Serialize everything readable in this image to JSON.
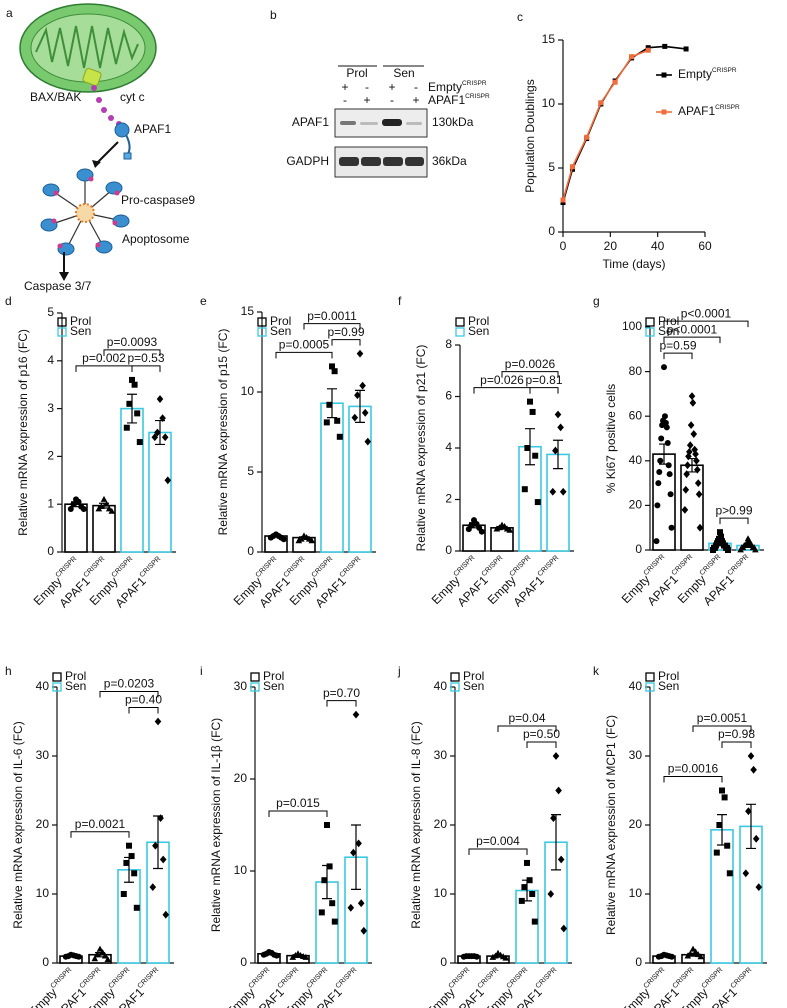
{
  "diagram": {
    "panel": "a",
    "labels": [
      "BAX/BAK",
      "cyt c",
      "APAF1",
      "Pro-caspase9",
      "Apoptosome",
      "Caspase 3/7"
    ]
  },
  "blot": {
    "panel": "b",
    "groups": [
      "Prol",
      "Sen"
    ],
    "rows": [
      {
        "label": "Empty",
        "superscript": "CRISPR",
        "signs": [
          "+",
          "-",
          "+",
          "-"
        ]
      },
      {
        "label": "APAF1",
        "superscript": "CRISPR",
        "signs": [
          "-",
          "+",
          "-",
          "+"
        ]
      }
    ],
    "bands": [
      {
        "label": "APAF1",
        "size": "130kDa"
      },
      {
        "label": "GADPH",
        "size": "36kDa"
      }
    ]
  },
  "chart_data": [
    {
      "type": "line",
      "panel": "c",
      "xlabel": "Time (days)",
      "ylabel": "Population Doublings",
      "superscript": "CRISPR",
      "series": [
        {
          "name": "Empty",
          "color": "#000000",
          "x": [
            0,
            4,
            10,
            16,
            22,
            29,
            36,
            43,
            52
          ],
          "values": [
            2.3,
            4.9,
            7.3,
            10.0,
            11.8,
            13.6,
            14.4,
            14.5,
            14.3
          ]
        },
        {
          "name": "APAF1",
          "color": "#f26b3a",
          "x": [
            0,
            4,
            10,
            16,
            22,
            29,
            36
          ],
          "values": [
            2.5,
            5.1,
            7.4,
            10.1,
            11.7,
            13.7,
            14.2
          ]
        }
      ],
      "xlim": [
        0,
        60
      ],
      "xticks": [
        0,
        20,
        40,
        60
      ],
      "ylim": [
        0,
        15
      ],
      "yticks": [
        0,
        5,
        10,
        15
      ]
    },
    {
      "type": "bar",
      "panel": "d",
      "ylabel": "Relative mRNA expression of p16 (FC)",
      "superscript": "CRISPR",
      "categories": [
        "Empty",
        "APAF1",
        "Empty",
        "APAF1"
      ],
      "colors": [
        "#000000",
        "#000000",
        "#3cc8e0",
        "#3cc8e0"
      ],
      "markers": [
        "circle",
        "triangle",
        "square",
        "diamond"
      ],
      "legend": [
        {
          "name": "Prol",
          "color": "#000000"
        },
        {
          "name": "Sen",
          "color": "#3cc8e0"
        }
      ],
      "values": [
        1.0,
        0.97,
        3.0,
        2.5
      ],
      "errors": [
        0.05,
        0.05,
        0.3,
        0.25
      ],
      "points": [
        [
          1.1,
          1.05,
          1.0,
          0.95,
          0.9,
          0.9
        ],
        [
          1.1,
          1.0,
          0.95,
          0.9,
          0.9,
          0.85
        ],
        [
          3.6,
          3.5,
          3.1,
          2.9,
          2.6,
          2.3
        ],
        [
          3.2,
          2.8,
          2.5,
          2.4,
          2.4,
          1.5
        ]
      ],
      "annotations": [
        {
          "text": "p=0.002",
          "groups": [
            0,
            2
          ]
        },
        {
          "text": "p=0.53",
          "groups": [
            2,
            3
          ]
        },
        {
          "text": "p=0.0093",
          "groups": [
            1,
            3
          ]
        }
      ],
      "ylim": [
        0,
        5
      ],
      "yticks": [
        0,
        1,
        2,
        3,
        4,
        5
      ]
    },
    {
      "type": "bar",
      "panel": "e",
      "ylabel": "Relative mRNA expression of p15 (FC)",
      "superscript": "CRISPR",
      "categories": [
        "Empty",
        "APAF1",
        "Empty",
        "APAF1"
      ],
      "colors": [
        "#000000",
        "#000000",
        "#3cc8e0",
        "#3cc8e0"
      ],
      "markers": [
        "circle",
        "triangle",
        "square",
        "diamond"
      ],
      "legend": [
        {
          "name": "Prol",
          "color": "#000000"
        },
        {
          "name": "Sen",
          "color": "#3cc8e0"
        }
      ],
      "values": [
        1.0,
        0.9,
        9.3,
        9.1
      ],
      "errors": [
        0.05,
        0.05,
        0.9,
        1.0
      ],
      "points": [
        [
          1.1,
          1.0,
          1.0,
          0.9,
          0.9,
          0.8
        ],
        [
          1.0,
          0.9,
          0.8,
          0.8,
          0.7,
          0.7
        ],
        [
          11.6,
          11.3,
          9.2,
          8.2,
          8.1,
          7.2
        ],
        [
          12.4,
          10.4,
          9.8,
          8.7,
          8.4,
          6.9
        ]
      ],
      "annotations": [
        {
          "text": "p=0.0005",
          "groups": [
            0,
            2
          ]
        },
        {
          "text": "p=0.99",
          "groups": [
            2,
            3
          ]
        },
        {
          "text": "p=0.0011",
          "groups": [
            1,
            3
          ]
        }
      ],
      "ylim": [
        0,
        15
      ],
      "yticks": [
        0,
        5,
        10,
        15
      ]
    },
    {
      "type": "bar",
      "panel": "f",
      "ylabel": "Relative mRNA expression of p21 (FC)",
      "superscript": "CRISPR",
      "categories": [
        "Empty",
        "APAF1",
        "Empty",
        "APAF1"
      ],
      "colors": [
        "#000000",
        "#000000",
        "#3cc8e0",
        "#3cc8e0"
      ],
      "markers": [
        "circle",
        "triangle",
        "square",
        "diamond"
      ],
      "legend": [
        {
          "name": "Prol",
          "color": "#000000"
        },
        {
          "name": "Sen",
          "color": "#3cc8e0"
        }
      ],
      "values": [
        1.0,
        0.9,
        4.05,
        3.75
      ],
      "errors": [
        0.1,
        0.05,
        0.7,
        0.55
      ],
      "points": [
        [
          1.2,
          1.05,
          1.0,
          0.9,
          0.85,
          0.75
        ],
        [
          1.0,
          0.95,
          0.9,
          0.85,
          0.85,
          0.8
        ],
        [
          5.8,
          5.4,
          4.0,
          3.7,
          2.4,
          1.9
        ],
        [
          5.3,
          4.8,
          3.9,
          2.3,
          2.3
        ]
      ],
      "annotations": [
        {
          "text": "p=0.026",
          "groups": [
            0,
            2
          ]
        },
        {
          "text": "p=0.81",
          "groups": [
            2,
            3
          ]
        },
        {
          "text": "p=0.0026",
          "groups": [
            1,
            3
          ]
        }
      ],
      "ylim": [
        0,
        8
      ],
      "yticks": [
        0,
        2,
        4,
        6,
        8
      ]
    },
    {
      "type": "bar",
      "panel": "g",
      "ylabel": "% Ki67 positive cells",
      "superscript": "CRISPR",
      "categories": [
        "Empty",
        "APAF1",
        "Empty",
        "APAF1"
      ],
      "colors": [
        "#000000",
        "#000000",
        "#3cc8e0",
        "#3cc8e0"
      ],
      "markers": [
        "circle",
        "diamond",
        "square",
        "triangle"
      ],
      "legend": [
        {
          "name": "Prol",
          "color": "#000000"
        },
        {
          "name": "Sen",
          "color": "#3cc8e0"
        }
      ],
      "values": [
        43,
        38,
        3,
        2
      ],
      "errors": [
        4.5,
        3,
        1,
        0.5
      ],
      "points": [
        [
          82,
          60,
          58,
          57,
          56,
          55,
          50,
          48,
          40,
          38,
          35,
          34,
          30,
          25,
          20,
          10,
          4
        ],
        [
          69,
          66,
          56,
          52,
          47,
          45,
          44,
          43,
          42,
          40,
          38,
          36,
          34,
          30,
          27,
          25,
          18,
          10
        ],
        [
          8,
          6,
          5,
          4,
          4,
          3,
          3,
          2,
          2,
          2,
          1,
          1,
          1,
          1,
          0,
          0
        ],
        [
          5,
          4,
          3,
          3,
          2,
          2,
          2,
          1,
          1,
          1,
          1,
          0,
          0
        ]
      ],
      "annotations": [
        {
          "text": "p=0.59",
          "groups": [
            0,
            1
          ]
        },
        {
          "text": "p>0.99",
          "groups": [
            2,
            3
          ]
        },
        {
          "text": "p<0.0001",
          "groups": [
            0,
            2
          ]
        },
        {
          "text": "p<0.0001",
          "groups": [
            0,
            3
          ]
        }
      ],
      "ylim": [
        0,
        100
      ],
      "yticks": [
        0,
        20,
        40,
        60,
        80,
        100
      ]
    },
    {
      "type": "bar",
      "panel": "h",
      "ylabel": "Relative mRNA expression of IL-6 (FC)",
      "superscript": "CRISPR",
      "categories": [
        "Empty",
        "APAF1",
        "Empty",
        "APAF1"
      ],
      "colors": [
        "#000000",
        "#000000",
        "#3cc8e0",
        "#3cc8e0"
      ],
      "markers": [
        "circle",
        "triangle",
        "square",
        "diamond"
      ],
      "legend": [
        {
          "name": "Prol",
          "color": "#000000"
        },
        {
          "name": "Sen",
          "color": "#3cc8e0"
        }
      ],
      "values": [
        1.0,
        1.2,
        13.5,
        17.5
      ],
      "errors": [
        0.1,
        0.3,
        1.8,
        3.8
      ],
      "points": [
        [
          1.2,
          1.1,
          1.0,
          1.0,
          0.9,
          0.9
        ],
        [
          2.0,
          1.5,
          1.2,
          1.0,
          0.6,
          0.5
        ],
        [
          17,
          15.5,
          14.5,
          13,
          10,
          8
        ],
        [
          35,
          21,
          17,
          15,
          11,
          7
        ]
      ],
      "annotations": [
        {
          "text": "p=0.0021",
          "groups": [
            0,
            2
          ]
        },
        {
          "text": "p=0.40",
          "groups": [
            2,
            3
          ]
        },
        {
          "text": "p=0.0203",
          "groups": [
            1,
            3
          ]
        }
      ],
      "ylim": [
        0,
        40
      ],
      "yticks": [
        0,
        10,
        20,
        30,
        40
      ]
    },
    {
      "type": "bar",
      "panel": "i",
      "ylabel": "Relative mRNA expression of IL-1β (FC)",
      "superscript": "CRISPR",
      "categories": [
        "Empty",
        "APAF1",
        "Empty",
        "APAF1"
      ],
      "colors": [
        "#000000",
        "#000000",
        "#3cc8e0",
        "#3cc8e0"
      ],
      "markers": [
        "circle",
        "triangle",
        "square",
        "diamond"
      ],
      "legend": [
        {
          "name": "Prol",
          "color": "#000000"
        },
        {
          "name": "Sen",
          "color": "#3cc8e0"
        }
      ],
      "values": [
        1.0,
        0.8,
        8.8,
        11.5
      ],
      "errors": [
        0.1,
        0.1,
        1.8,
        3.5
      ],
      "points": [
        [
          1.2,
          1.1,
          1.0,
          0.9,
          0.9,
          0.8
        ],
        [
          1.0,
          0.8,
          0.8,
          0.7,
          0.6,
          0.6
        ],
        [
          15,
          10.5,
          9,
          6.5,
          5.5,
          4.5
        ],
        [
          27,
          13,
          12,
          6.5,
          6,
          3.5
        ]
      ],
      "annotations": [
        {
          "text": "p=0.015",
          "groups": [
            0,
            2
          ]
        },
        {
          "text": "p=0.70",
          "groups": [
            2,
            3
          ]
        }
      ],
      "ylim": [
        0,
        30
      ],
      "yticks": [
        0,
        10,
        20,
        30
      ]
    },
    {
      "type": "bar",
      "panel": "j",
      "ylabel": "Relative mRNA expression of IL-8 (FC)",
      "superscript": "CRISPR",
      "categories": [
        "Empty",
        "APAF1",
        "Empty",
        "APAF1"
      ],
      "colors": [
        "#000000",
        "#000000",
        "#3cc8e0",
        "#3cc8e0"
      ],
      "markers": [
        "circle",
        "triangle",
        "square",
        "diamond"
      ],
      "legend": [
        {
          "name": "Prol",
          "color": "#000000"
        },
        {
          "name": "Sen",
          "color": "#3cc8e0"
        }
      ],
      "values": [
        1.0,
        1.0,
        10.5,
        17.5
      ],
      "errors": [
        0.1,
        0.1,
        1.5,
        4.0
      ],
      "points": [
        [
          1.0,
          1.0,
          1.0,
          1.0,
          0.9,
          0.9
        ],
        [
          1.4,
          1.1,
          1.0,
          0.9,
          0.8,
          0.7
        ],
        [
          14.5,
          12,
          11,
          10,
          9,
          6
        ],
        [
          30,
          25,
          21,
          15,
          10,
          5
        ]
      ],
      "annotations": [
        {
          "text": "p=0.004",
          "groups": [
            0,
            2
          ]
        },
        {
          "text": "p=0.50",
          "groups": [
            2,
            3
          ]
        },
        {
          "text": "p=0.04",
          "groups": [
            1,
            3
          ]
        }
      ],
      "ylim": [
        0,
        40
      ],
      "yticks": [
        0,
        10,
        20,
        30,
        40
      ]
    },
    {
      "type": "bar",
      "panel": "k",
      "ylabel": "Relative mRNA expression of MCP1 (FC)",
      "superscript": "CRISPR",
      "categories": [
        "Empty",
        "APAF1",
        "Empty",
        "APAF1"
      ],
      "colors": [
        "#000000",
        "#000000",
        "#3cc8e0",
        "#3cc8e0"
      ],
      "markers": [
        "circle",
        "triangle",
        "square",
        "diamond"
      ],
      "legend": [
        {
          "name": "Prol",
          "color": "#000000"
        },
        {
          "name": "Sen",
          "color": "#3cc8e0"
        }
      ],
      "values": [
        1.0,
        1.2,
        19.3,
        19.8
      ],
      "errors": [
        0.1,
        0.2,
        2.2,
        3.2
      ],
      "points": [
        [
          1.2,
          1.1,
          1.0,
          1.0,
          0.9,
          0.9
        ],
        [
          2.0,
          1.6,
          1.3,
          1.2,
          1.0,
          0.9
        ],
        [
          25,
          24,
          20,
          17,
          16,
          13
        ],
        [
          30,
          28,
          22,
          18,
          13,
          11
        ]
      ],
      "annotations": [
        {
          "text": "p=0.0016",
          "groups": [
            0,
            2
          ]
        },
        {
          "text": "p=0.98",
          "groups": [
            2,
            3
          ]
        },
        {
          "text": "p=0.0051",
          "groups": [
            1,
            3
          ]
        }
      ],
      "ylim": [
        0,
        40
      ],
      "yticks": [
        0,
        10,
        20,
        30,
        40
      ]
    }
  ]
}
